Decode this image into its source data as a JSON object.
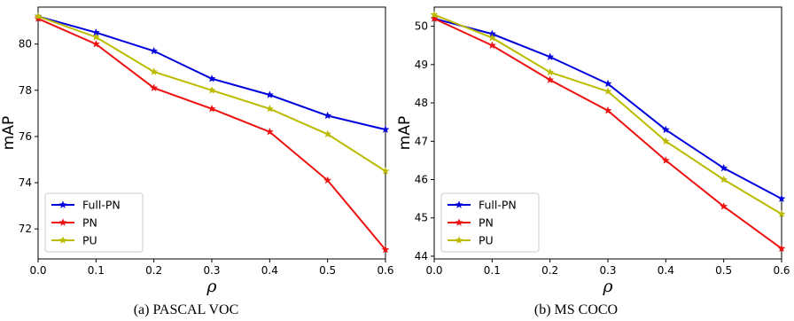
{
  "chart_data": [
    {
      "type": "line",
      "caption": "(a)  PASCAL VOC",
      "xlabel": "ρ",
      "ylabel": "mAP",
      "x": [
        0.0,
        0.1,
        0.2,
        0.3,
        0.4,
        0.5,
        0.6
      ],
      "xticks": [
        "0.0",
        "0.1",
        "0.2",
        "0.3",
        "0.4",
        "0.5",
        "0.6"
      ],
      "yticks": [
        72,
        74,
        76,
        78,
        80
      ],
      "xlim": [
        0.0,
        0.6
      ],
      "ylim": [
        70.7,
        81.6
      ],
      "legend_position": "lower-left",
      "grid": false,
      "series": [
        {
          "name": "Full-PN",
          "color": "#0000dd",
          "values": [
            81.2,
            80.5,
            79.7,
            78.5,
            77.8,
            76.9,
            76.3
          ]
        },
        {
          "name": "PN",
          "color": "#ee1111",
          "values": [
            81.1,
            80.0,
            78.1,
            77.2,
            76.2,
            74.1,
            71.1
          ]
        },
        {
          "name": "PU",
          "color": "#bbbb00",
          "values": [
            81.2,
            80.3,
            78.8,
            78.0,
            77.2,
            76.1,
            74.5
          ]
        }
      ]
    },
    {
      "type": "line",
      "caption": "(b)  MS COCO",
      "xlabel": "ρ",
      "ylabel": "mAP",
      "x": [
        0.0,
        0.1,
        0.2,
        0.3,
        0.4,
        0.5,
        0.6
      ],
      "xticks": [
        "0.0",
        "0.1",
        "0.2",
        "0.3",
        "0.4",
        "0.5",
        "0.6"
      ],
      "yticks": [
        44,
        45,
        46,
        47,
        48,
        49,
        50
      ],
      "xlim": [
        0.0,
        0.6
      ],
      "ylim": [
        43.93,
        50.5
      ],
      "legend_position": "lower-left",
      "grid": false,
      "series": [
        {
          "name": "Full-PN",
          "color": "#0000dd",
          "values": [
            50.2,
            49.8,
            49.2,
            48.5,
            47.3,
            46.3,
            45.5
          ]
        },
        {
          "name": "PN",
          "color": "#ee1111",
          "values": [
            50.2,
            49.5,
            48.6,
            47.8,
            46.5,
            45.3,
            44.2
          ]
        },
        {
          "name": "PU",
          "color": "#bbbb00",
          "values": [
            50.3,
            49.7,
            48.8,
            48.3,
            47.0,
            46.0,
            45.1
          ]
        }
      ]
    }
  ]
}
